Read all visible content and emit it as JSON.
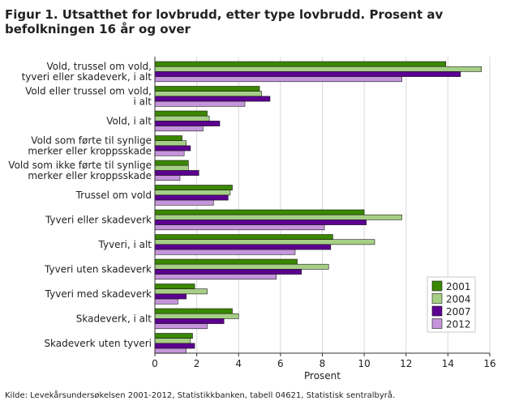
{
  "chart_data": {
    "type": "bar",
    "orientation": "horizontal",
    "title": "Figur 1. Utsatthet for lovbrudd, etter type lovbrudd. Prosent av befolkningen 16 år og over",
    "xlabel": "Prosent",
    "ylabel": "",
    "xlim": [
      0,
      16
    ],
    "xticks": [
      0,
      2,
      4,
      6,
      8,
      10,
      12,
      14,
      16
    ],
    "grid": "vertical",
    "legend_position": "bottom-right",
    "categories": [
      [
        "Vold, trussel om vold,",
        "tyveri eller skadeverk, i alt"
      ],
      [
        "Vold eller trussel om vold,",
        "i alt"
      ],
      [
        "Vold, i alt"
      ],
      [
        "Vold som førte til synlige",
        "merker eller kroppsskade"
      ],
      [
        "Vold som ikke førte til synlige",
        "merker eller kroppsskade"
      ],
      [
        "Trussel om vold"
      ],
      [
        "Tyveri eller skadeverk"
      ],
      [
        "Tyveri, i alt"
      ],
      [
        "Tyveri uten skadeverk"
      ],
      [
        "Tyveri med skadeverk"
      ],
      [
        "Skadeverk, i alt"
      ],
      [
        "Skadeverk uten tyveri"
      ]
    ],
    "series": [
      {
        "name": "2001",
        "color": "#3a8700",
        "values": [
          13.9,
          5.0,
          2.5,
          1.3,
          1.6,
          3.7,
          10.0,
          8.5,
          6.8,
          1.9,
          3.7,
          1.8
        ]
      },
      {
        "name": "2004",
        "color": "#a6cf86",
        "values": [
          15.6,
          5.1,
          2.6,
          1.5,
          1.6,
          3.6,
          11.8,
          10.5,
          8.3,
          2.5,
          4.0,
          1.7
        ]
      },
      {
        "name": "2007",
        "color": "#5c0090",
        "values": [
          14.6,
          5.5,
          3.1,
          1.7,
          2.1,
          3.5,
          10.1,
          8.4,
          7.0,
          1.5,
          3.3,
          1.9
        ]
      },
      {
        "name": "2012",
        "color": "#c595db",
        "values": [
          11.8,
          4.3,
          2.3,
          1.4,
          1.2,
          2.8,
          8.1,
          6.7,
          5.8,
          1.1,
          2.5,
          1.5
        ]
      }
    ]
  },
  "source": "Kilde: Levekårsundersøkelsen 2001-2012, Statistikkbanken, tabell 04621, Statistisk sentralbyrå."
}
